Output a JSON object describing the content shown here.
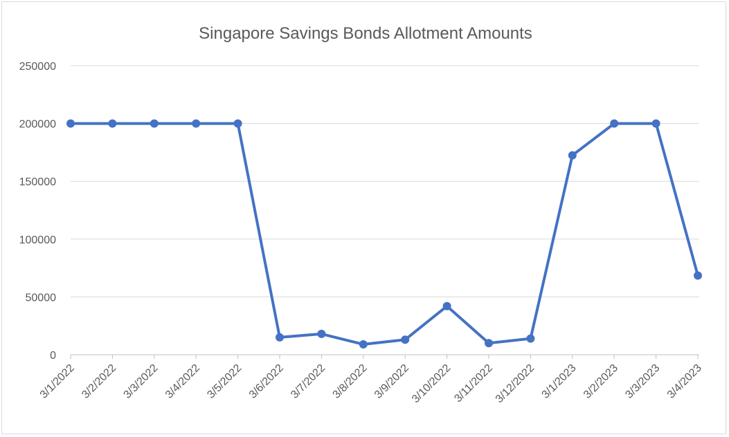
{
  "chart_data": {
    "type": "line",
    "title": "Singapore Savings Bonds Allotment Amounts",
    "xlabel": "",
    "ylabel": "",
    "categories": [
      "3/1/2022",
      "3/2/2022",
      "3/3/2022",
      "3/4/2022",
      "3/5/2022",
      "3/6/2022",
      "3/7/2022",
      "3/8/2022",
      "3/9/2022",
      "3/10/2022",
      "3/11/2022",
      "3/12/2022",
      "3/1/2023",
      "3/2/2023",
      "3/3/2023",
      "3/4/2023"
    ],
    "series": [
      {
        "values": [
          200000,
          200000,
          200000,
          200000,
          200000,
          15000,
          18000,
          9000,
          13000,
          42000,
          10000,
          14000,
          172500,
          200000,
          200000,
          68500
        ],
        "color": "#4472c4"
      }
    ],
    "ylim": [
      0,
      250000
    ],
    "yticks": [
      0,
      50000,
      100000,
      150000,
      200000,
      250000
    ],
    "grid": true,
    "legend": "none"
  }
}
